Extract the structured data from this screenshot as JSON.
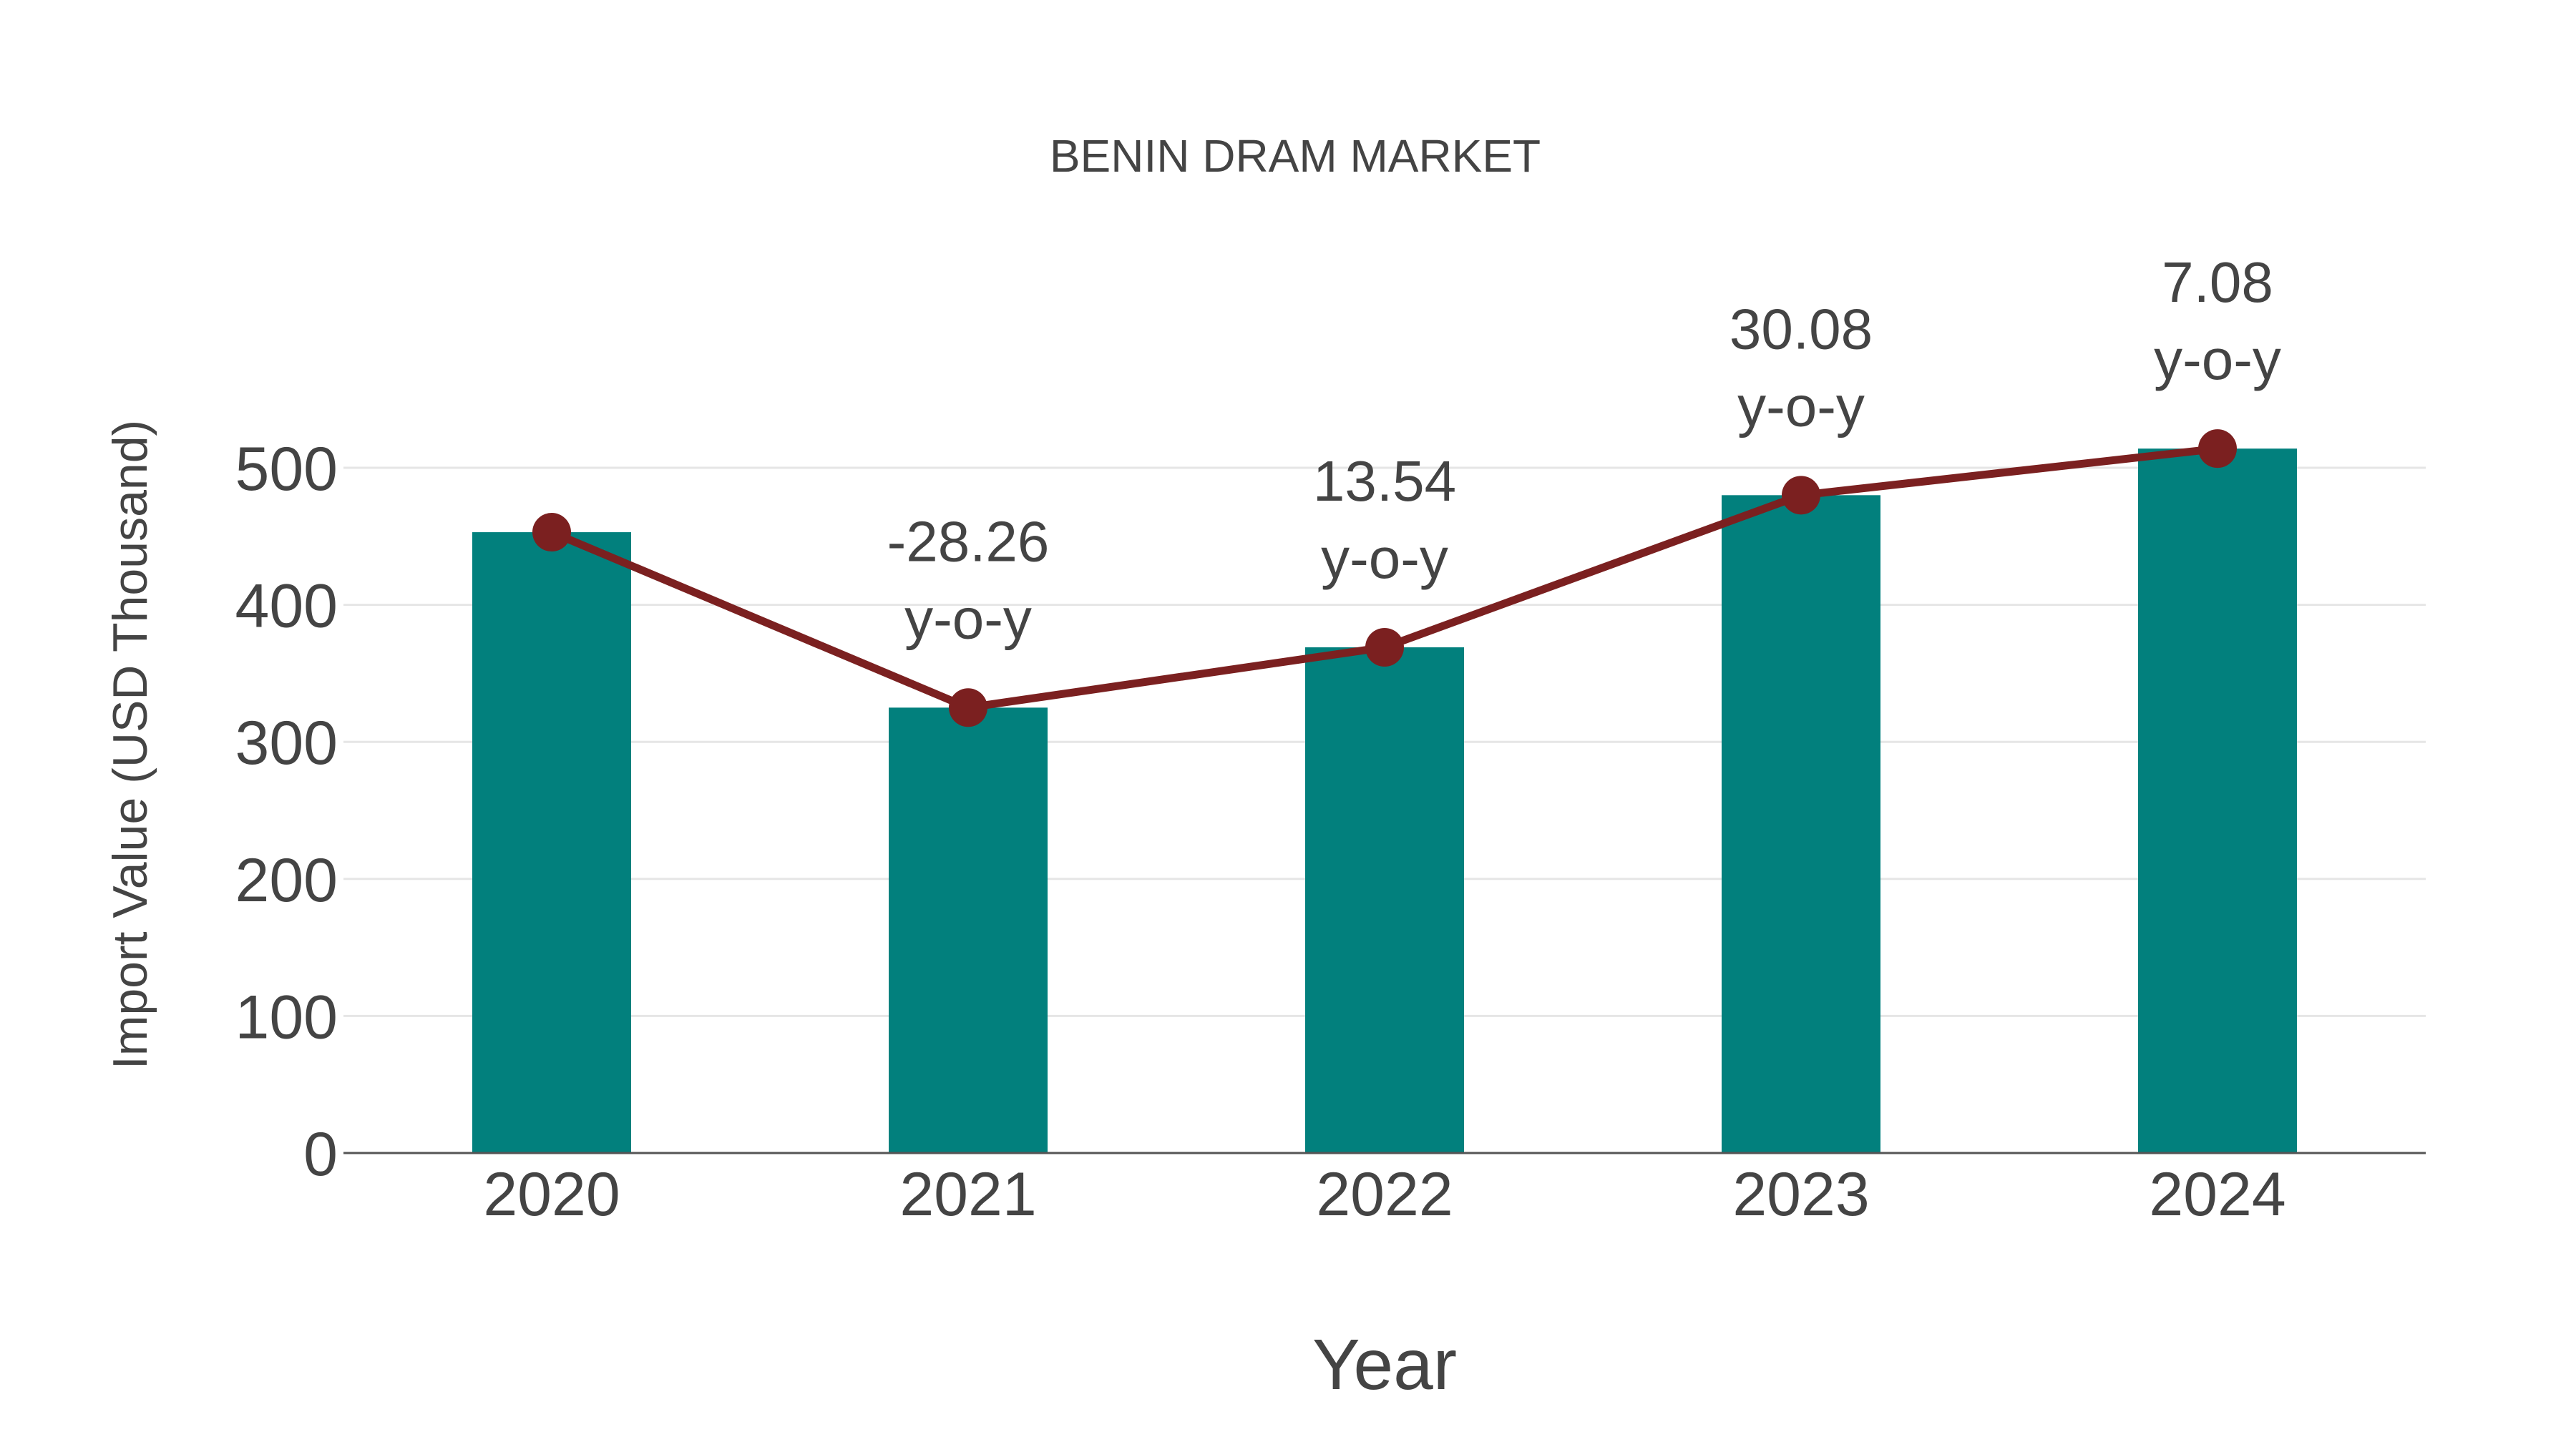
{
  "chart_data": {
    "type": "bar",
    "title": "BENIN DRAM MARKET",
    "xlabel": "Year",
    "ylabel": "Import Value (USD Thousand)",
    "categories": [
      "2020",
      "2021",
      "2022",
      "2023",
      "2024"
    ],
    "series": [
      {
        "name": "Import Value",
        "kind": "bar",
        "color": "#02807d",
        "values": [
          453,
          325,
          369,
          480,
          514
        ]
      },
      {
        "name": "Trend",
        "kind": "line+markers",
        "color": "#7b2020",
        "values": [
          453,
          325,
          369,
          480,
          514
        ]
      }
    ],
    "annotations": [
      {
        "category": "2021",
        "value": "-28.26",
        "suffix": "y-o-y"
      },
      {
        "category": "2022",
        "value": "13.54",
        "suffix": "y-o-y"
      },
      {
        "category": "2023",
        "value": "30.08",
        "suffix": "y-o-y"
      },
      {
        "category": "2024",
        "value": "7.08",
        "suffix": "y-o-y"
      }
    ],
    "yticks": [
      0,
      100,
      200,
      300,
      400,
      500
    ],
    "ylim": [
      0,
      500
    ],
    "grid": true,
    "legend": "none"
  },
  "colors": {
    "bar": "#02807d",
    "line": "#7b2020",
    "text": "#444444",
    "grid": "#e6e6e6",
    "axis": "#555555"
  }
}
